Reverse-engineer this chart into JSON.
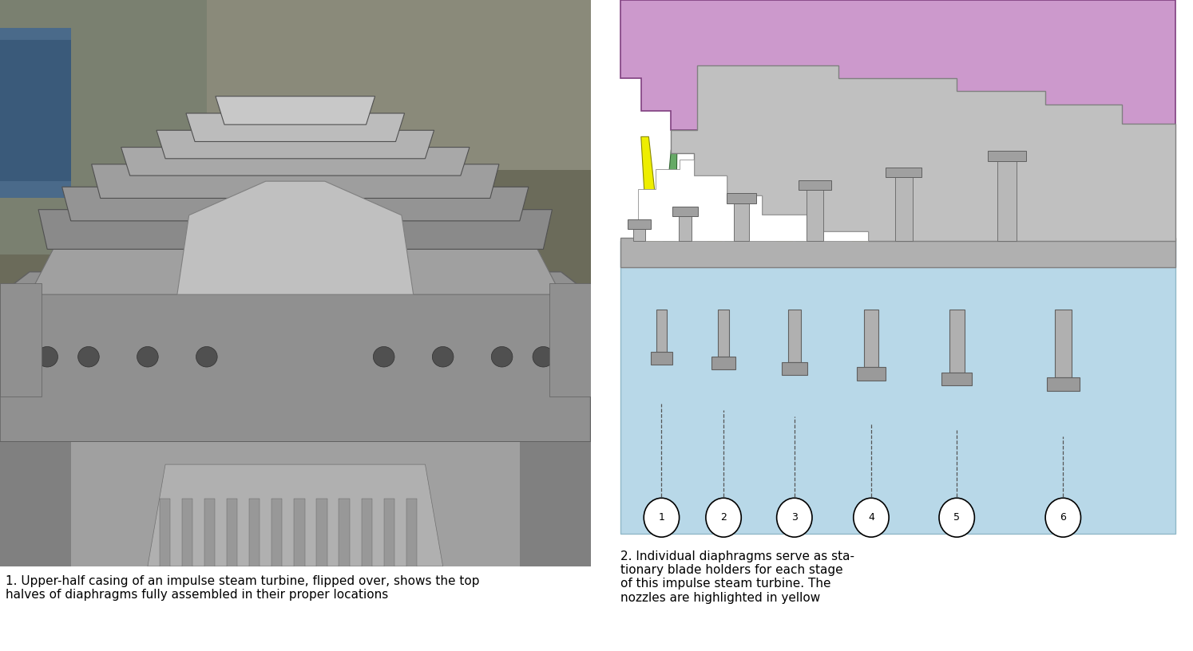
{
  "caption1": "1. Upper-half casing of an impulse steam turbine, flipped over, shows the top\nhalves of diaphragms fully assembled in their proper locations",
  "caption2": "2. Individual diaphragms serve as sta-\ntionary blade holders for each stage\nof this impulse steam turbine. The\nnozzles are highlighted in yellow",
  "stage_labels": [
    "1",
    "2",
    "3",
    "4",
    "5",
    "6"
  ],
  "bg_color": "#ffffff",
  "diagram_bg": "#b8d8e8",
  "purple_color": "#cc99cc",
  "yellow_color": "#eeee00",
  "green_color": "#66aa66",
  "gray_color": "#aaaaaa",
  "light_gray": "#cccccc",
  "white_color": "#ffffff",
  "caption_fontsize": 11.0
}
